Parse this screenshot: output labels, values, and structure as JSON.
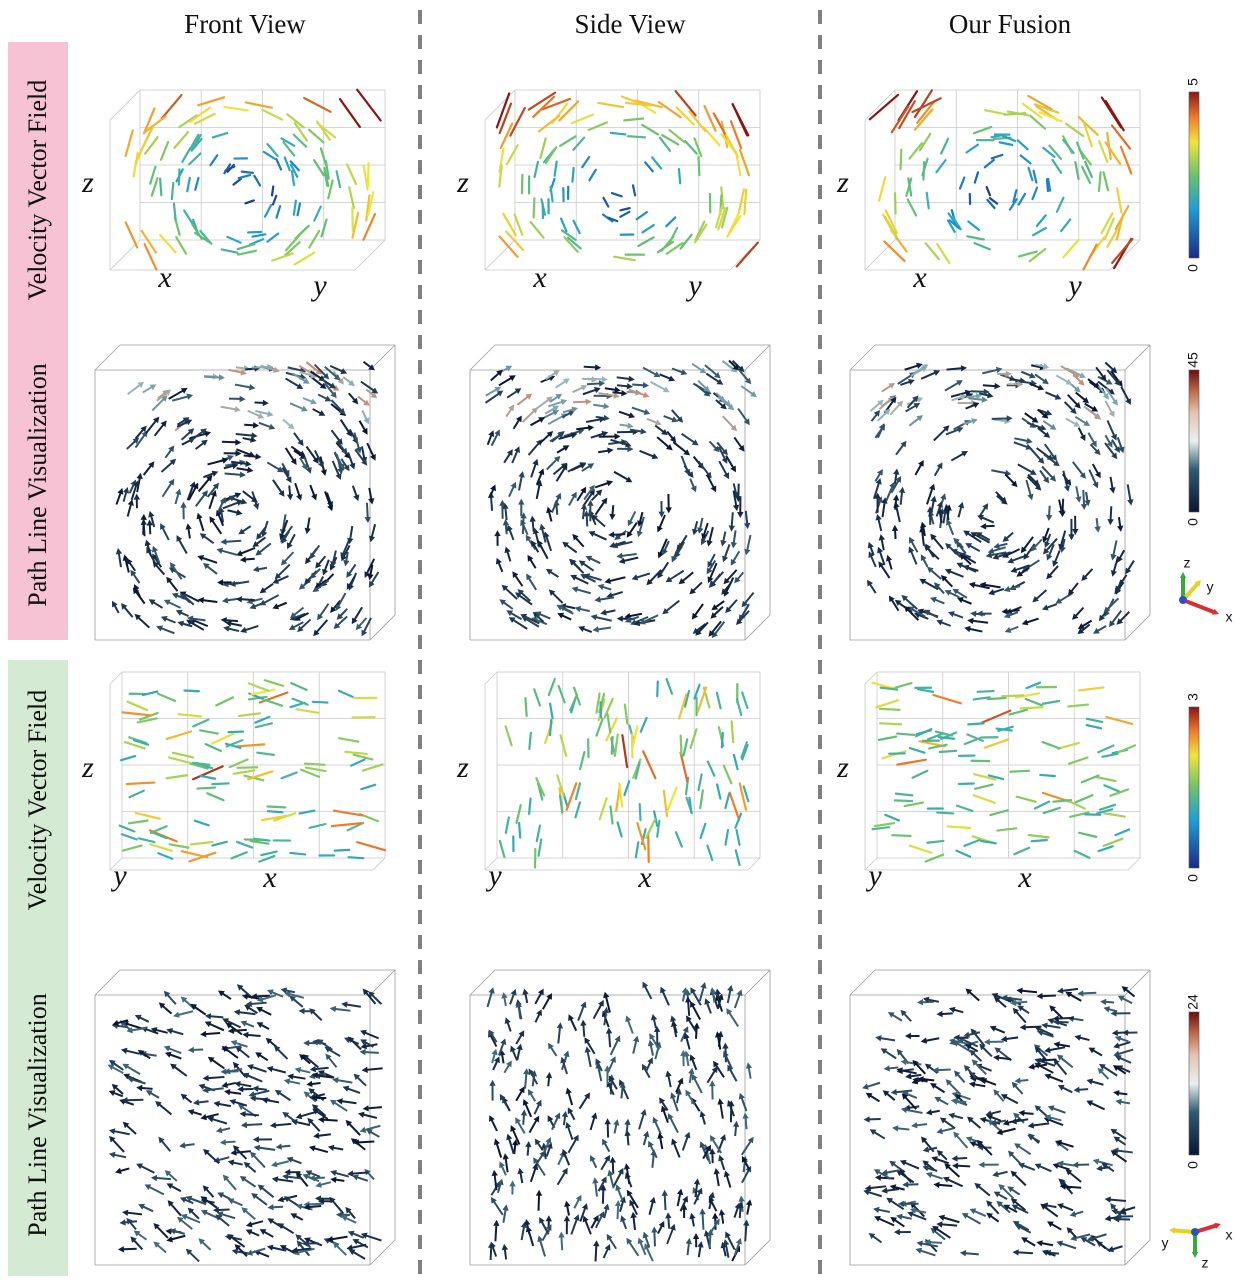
{
  "header": {
    "columns": [
      "Front View",
      "Side View",
      "Our Fusion"
    ]
  },
  "rows": [
    {
      "label": "Velocity Vector Field",
      "panels": [
        {
          "axes": [
            "z",
            "x",
            "y"
          ]
        },
        {
          "axes": [
            "z",
            "x",
            "y"
          ]
        },
        {
          "axes": [
            "z",
            "x",
            "y"
          ]
        }
      ],
      "colorbar": {
        "max": 5,
        "min": 0
      }
    },
    {
      "label": "Path Line Visualization",
      "colorbar": {
        "max": 45,
        "min": 0
      },
      "triad": [
        "z",
        "y",
        "x"
      ]
    },
    {
      "label": "Velocity Vector Field",
      "panels": [
        {
          "axes": [
            "z",
            "y",
            "x"
          ]
        },
        {
          "axes": [
            "z",
            "y",
            "x"
          ]
        },
        {
          "axes": [
            "z",
            "y",
            "x"
          ]
        }
      ],
      "colorbar": {
        "max": 3,
        "min": 0
      }
    },
    {
      "label": "Path Line Visualization",
      "colorbar": {
        "max": 24,
        "min": 0
      },
      "triad": [
        "y",
        "x",
        "z"
      ]
    }
  ]
}
